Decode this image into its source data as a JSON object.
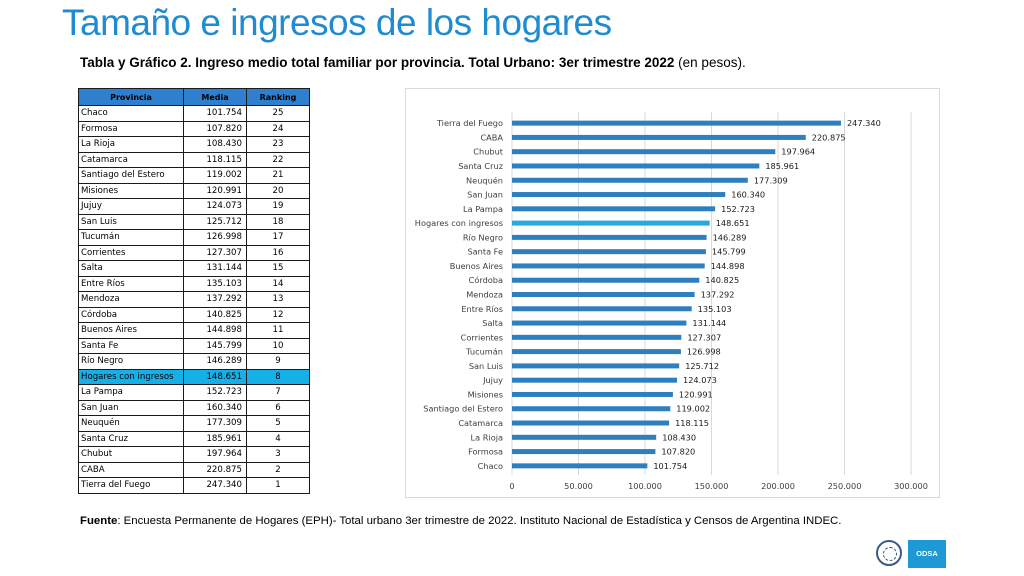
{
  "page": {
    "title": "Tamaño e ingresos de los hogares",
    "subtitle_bold": "Tabla y Gráfico 2. Ingreso medio total familiar por provincia. Total Urbano: 3er trimestre 2022",
    "subtitle_rest": " (en pesos).",
    "footer_label": "Fuente",
    "footer_text": ": Encuesta Permanente de Hogares (EPH)- Total urbano 3er trimestre de 2022. Instituto Nacional de Estadística y Censos de Argentina INDEC.",
    "logo_text": "ODSA"
  },
  "table": {
    "headers": [
      "Provincia",
      "Media",
      "Ranking"
    ],
    "highlight_color": "#16b0e8",
    "rows": [
      {
        "provincia": "Chaco",
        "media": "101.754",
        "ranking": "25"
      },
      {
        "provincia": "Formosa",
        "media": "107.820",
        "ranking": "24"
      },
      {
        "provincia": "La Rioja",
        "media": "108.430",
        "ranking": "23"
      },
      {
        "provincia": "Catamarca",
        "media": "118.115",
        "ranking": "22"
      },
      {
        "provincia": "Santiago del Estero",
        "media": "119.002",
        "ranking": "21"
      },
      {
        "provincia": "Misiones",
        "media": "120.991",
        "ranking": "20"
      },
      {
        "provincia": "Jujuy",
        "media": "124.073",
        "ranking": "19"
      },
      {
        "provincia": "San Luis",
        "media": "125.712",
        "ranking": "18"
      },
      {
        "provincia": "Tucumán",
        "media": "126.998",
        "ranking": "17"
      },
      {
        "provincia": "Corrientes",
        "media": "127.307",
        "ranking": "16"
      },
      {
        "provincia": "Salta",
        "media": "131.144",
        "ranking": "15"
      },
      {
        "provincia": "Entre Ríos",
        "media": "135.103",
        "ranking": "14"
      },
      {
        "provincia": "Mendoza",
        "media": "137.292",
        "ranking": "13"
      },
      {
        "provincia": "Córdoba",
        "media": "140.825",
        "ranking": "12"
      },
      {
        "provincia": "Buenos Aires",
        "media": "144.898",
        "ranking": "11"
      },
      {
        "provincia": "Santa Fe",
        "media": "145.799",
        "ranking": "10"
      },
      {
        "provincia": "Río Negro",
        "media": "146.289",
        "ranking": "9"
      },
      {
        "provincia": "Hogares con ingresos",
        "media": "148.651",
        "ranking": "8",
        "highlight": true
      },
      {
        "provincia": "La Pampa",
        "media": "152.723",
        "ranking": "7"
      },
      {
        "provincia": "San Juan",
        "media": "160.340",
        "ranking": "6"
      },
      {
        "provincia": "Neuquén",
        "media": "177.309",
        "ranking": "5"
      },
      {
        "provincia": "Santa Cruz",
        "media": "185.961",
        "ranking": "4"
      },
      {
        "provincia": "Chubut",
        "media": "197.964",
        "ranking": "3"
      },
      {
        "provincia": "CABA",
        "media": "220.875",
        "ranking": "2"
      },
      {
        "provincia": "Tierra del Fuego",
        "media": "247.340",
        "ranking": "1"
      }
    ]
  },
  "chart_data": {
    "type": "bar",
    "orientation": "horizontal",
    "categories": [
      "Tierra del Fuego",
      "CABA",
      "Chubut",
      "Santa Cruz",
      "Neuquén",
      "San Juan",
      "La Pampa",
      "Hogares con ingresos",
      "Río Negro",
      "Santa Fe",
      "Buenos Aires",
      "Córdoba",
      "Mendoza",
      "Entre Ríos",
      "Salta",
      "Corrientes",
      "Tucumán",
      "San Luis",
      "Jujuy",
      "Misiones",
      "Santiago del Estero",
      "Catamarca",
      "La Rioja",
      "Formosa",
      "Chaco"
    ],
    "values": [
      247340,
      220875,
      197964,
      185961,
      177309,
      160340,
      152723,
      148651,
      146289,
      145799,
      144898,
      140825,
      137292,
      135103,
      131144,
      127307,
      126998,
      125712,
      124073,
      120991,
      119002,
      118115,
      108430,
      107820,
      101754
    ],
    "value_labels": [
      "247.340",
      "220.875",
      "197.964",
      "185.961",
      "177.309",
      "160.340",
      "152.723",
      "148.651",
      "146.289",
      "145.799",
      "144.898",
      "140.825",
      "137.292",
      "135.103",
      "131.144",
      "127.307",
      "126.998",
      "125.712",
      "124.073",
      "120.991",
      "119.002",
      "118.115",
      "108.430",
      "107.820",
      "101.754"
    ],
    "highlight_category": "Hogares con ingresos",
    "xlim": [
      0,
      300000
    ],
    "xticks": [
      0,
      50000,
      100000,
      150000,
      200000,
      250000,
      300000
    ],
    "xtick_labels": [
      "0",
      "50.000",
      "100.000",
      "150.000",
      "200.000",
      "250.000",
      "300.000"
    ],
    "grid": "vertical",
    "bar_color": "#2e7fc0",
    "highlight_color": "#29a8e0",
    "title": "",
    "xlabel": "",
    "ylabel": ""
  }
}
